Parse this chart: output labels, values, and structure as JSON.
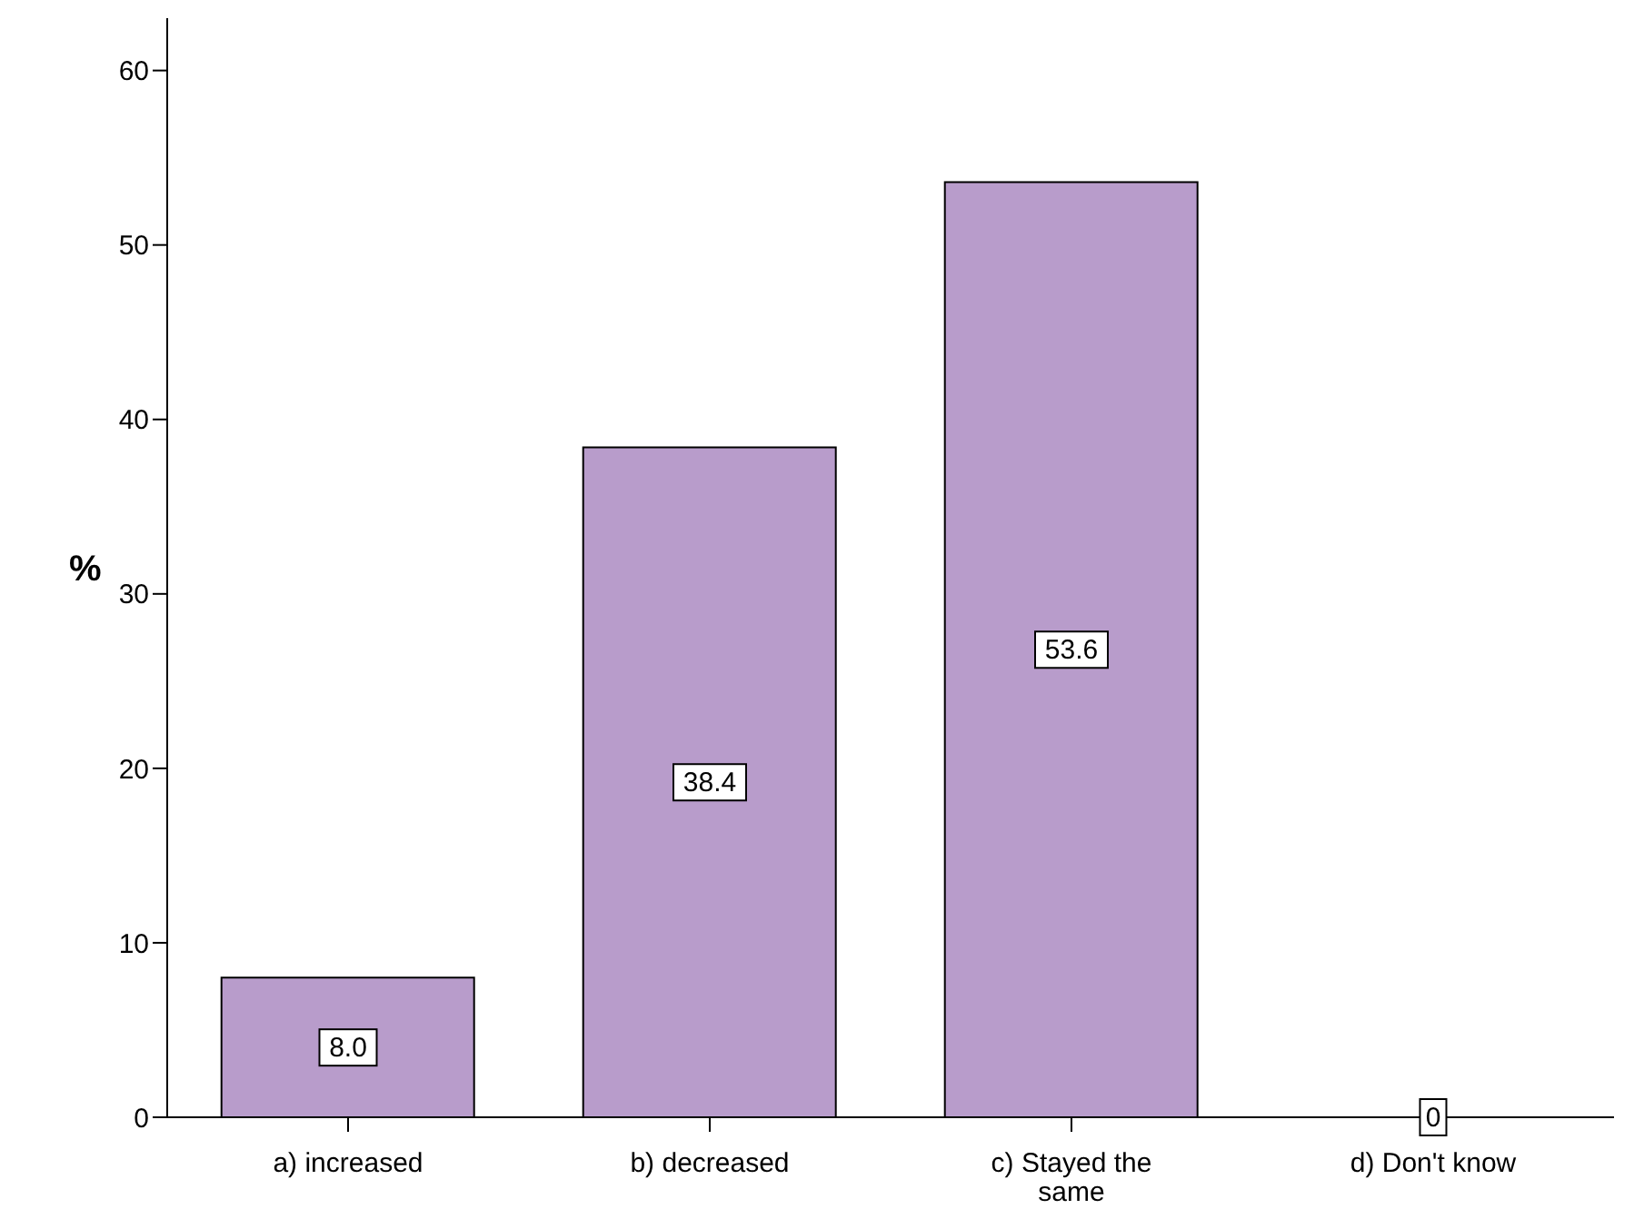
{
  "chart_data": {
    "type": "bar",
    "ylabel": "%",
    "categories": [
      "a) increased",
      "b) decreased",
      "c) Stayed the same",
      "d) Don't know"
    ],
    "values": [
      8.0,
      38.4,
      53.6,
      0
    ],
    "value_labels": [
      "8.0",
      "38.4",
      "53.6",
      "0"
    ],
    "color": "#b89ccb",
    "ylim": [
      0,
      63
    ],
    "yticks": [
      0,
      10,
      20,
      30,
      40,
      50,
      60
    ],
    "grid": false,
    "legend": false
  }
}
